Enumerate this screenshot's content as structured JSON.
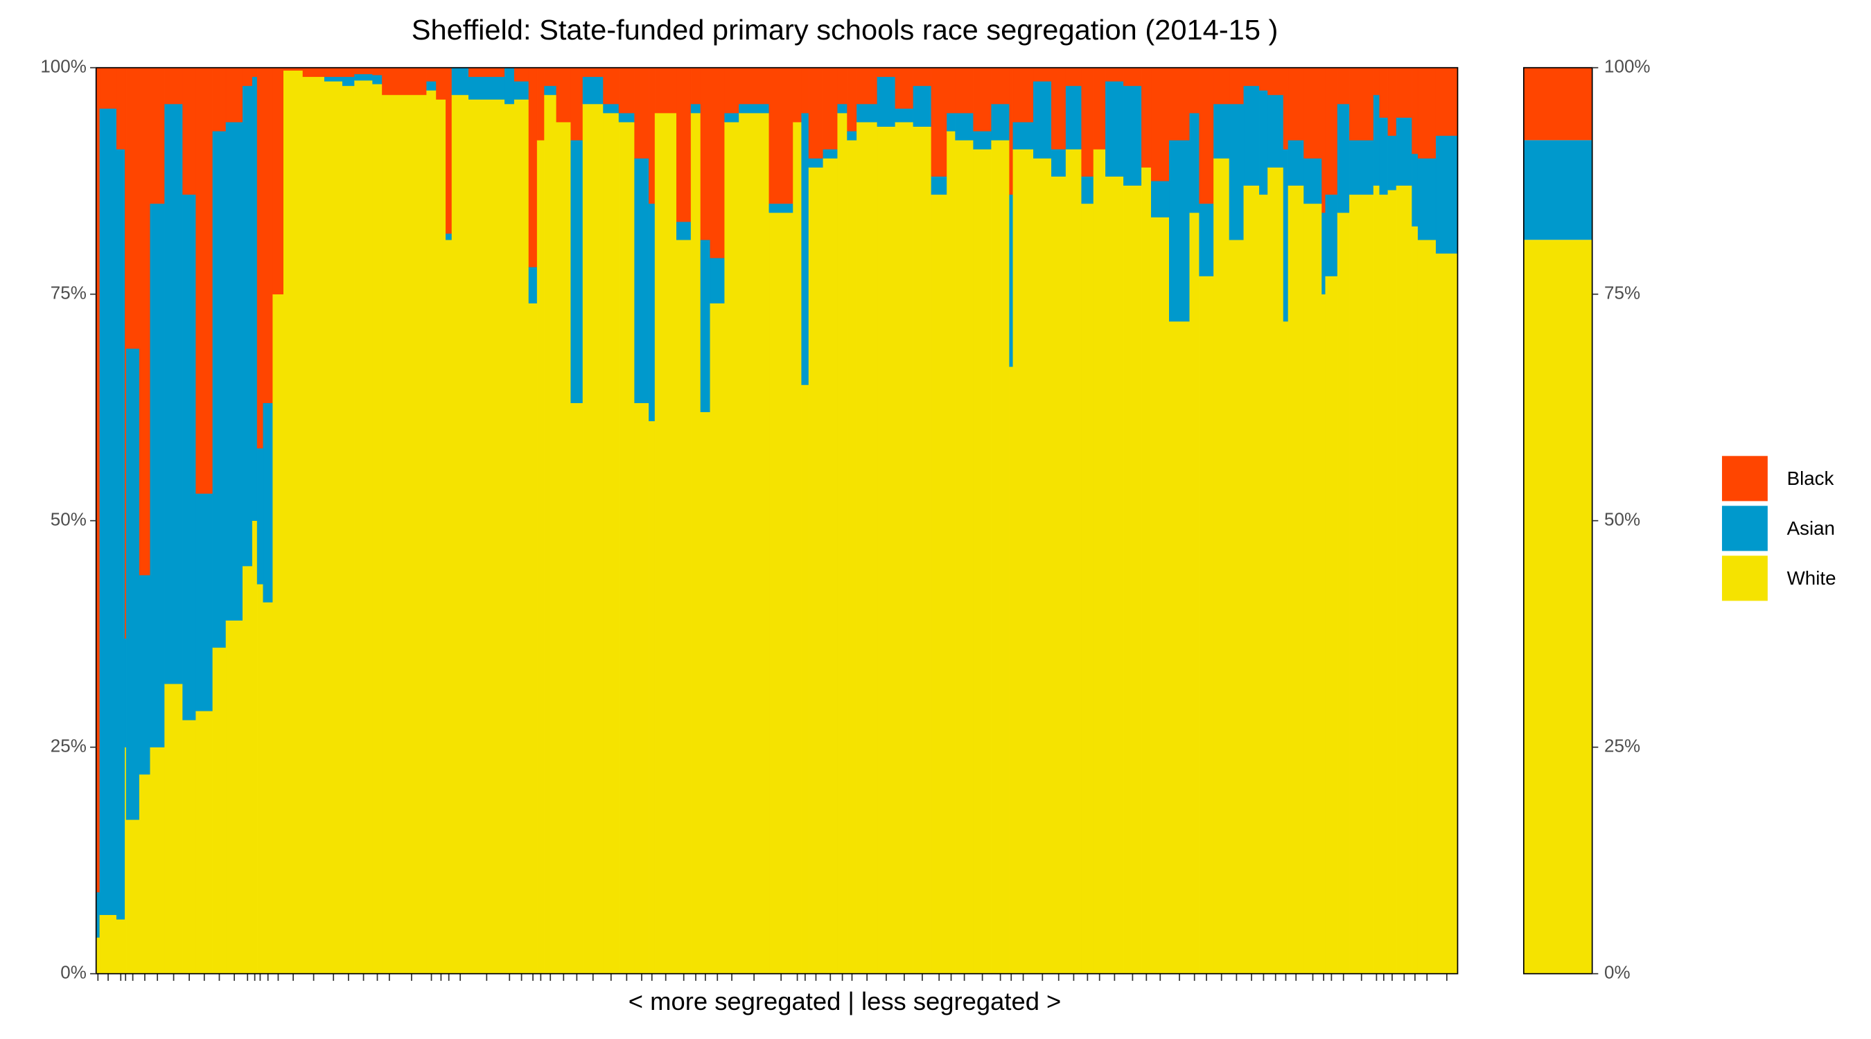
{
  "chart_data": {
    "type": "mekko",
    "title": "Sheffield: State-funded primary schools race segregation (2014-15 )",
    "x_label": "< more segregated | less segregated >",
    "ylim": [
      0,
      100
    ],
    "yticks": [
      {
        "value": 0,
        "label": "0%"
      },
      {
        "value": 25,
        "label": "25%"
      },
      {
        "value": 50,
        "label": "50%"
      },
      {
        "value": 75,
        "label": "75%"
      },
      {
        "value": 100,
        "label": "100%"
      }
    ],
    "legend_position": "right",
    "widths": [
      3,
      14,
      7,
      1,
      11,
      9,
      12,
      15,
      11,
      14,
      11,
      14,
      8,
      4,
      5,
      8,
      9,
      16,
      18,
      15,
      10,
      15,
      8,
      12,
      25,
      8,
      8,
      5,
      14,
      30,
      8,
      12,
      7,
      6,
      10,
      12,
      10,
      17,
      13,
      13,
      12,
      5,
      18,
      12,
      8,
      8,
      12,
      12,
      25,
      20,
      7,
      6,
      12,
      12,
      8,
      8,
      17,
      15,
      15,
      15,
      13,
      7,
      15,
      15,
      15,
      3,
      17,
      15,
      12,
      13,
      10,
      10,
      15,
      15,
      8,
      15,
      17,
      8,
      12,
      13,
      12,
      13,
      7,
      13,
      4,
      13,
      15,
      3,
      10,
      10,
      20,
      5,
      7,
      7,
      13,
      5,
      15,
      18
    ],
    "series": [
      {
        "name": "Black",
        "color": "#ff4500",
        "overall": 8,
        "values": [
          91,
          4.5,
          9,
          63,
          31,
          56,
          15,
          4,
          14,
          47,
          7,
          6,
          2,
          1,
          42,
          37,
          25,
          0.3,
          1,
          1,
          1,
          0.7,
          0.8,
          3,
          3,
          1.5,
          3.5,
          18.3,
          0,
          1,
          0,
          1.5,
          22,
          8,
          2,
          6,
          8,
          1,
          4,
          5,
          10,
          15,
          5,
          17,
          4,
          19,
          21,
          5,
          4,
          15,
          6,
          5,
          10,
          9,
          4,
          7,
          4,
          1,
          4.5,
          2,
          12,
          5,
          5,
          7,
          4,
          14,
          6,
          1.5,
          9,
          2,
          12,
          9,
          1.5,
          2,
          11,
          12.5,
          8,
          5,
          15,
          4,
          4,
          2,
          2.5,
          3,
          9,
          8,
          10,
          16,
          14,
          4,
          8,
          3,
          5.5,
          7.5,
          5.5,
          9.5,
          10,
          7.5
        ]
      },
      {
        "name": "Asian",
        "color": "#0099cc",
        "overall": 11,
        "values": [
          5,
          89,
          85,
          12,
          52,
          22,
          60,
          64,
          58,
          24,
          57,
          55,
          53,
          49,
          15,
          22,
          0,
          0,
          0,
          0.5,
          1,
          0.7,
          1,
          0,
          0,
          1,
          0,
          0.7,
          3,
          2.5,
          4,
          2,
          4,
          0,
          1,
          0,
          29,
          3,
          1,
          1,
          27,
          24,
          0,
          2,
          1,
          19,
          5,
          1,
          1,
          1,
          0,
          30,
          1,
          1,
          1,
          1,
          2,
          5.5,
          1.5,
          4.5,
          2,
          2,
          3,
          2,
          4,
          19,
          3,
          8.5,
          3,
          7,
          3,
          0,
          10.5,
          11,
          0,
          4,
          20,
          11,
          8,
          6,
          15,
          11,
          11.5,
          8,
          19,
          5,
          5,
          9,
          9,
          12,
          6,
          10,
          8.5,
          6,
          7.5,
          8,
          9,
          13
        ]
      },
      {
        "name": "White",
        "color": "#f5e300",
        "overall": 81,
        "values": [
          4,
          6.5,
          6,
          25,
          17,
          22,
          25,
          32,
          28,
          29,
          36,
          39,
          45,
          50,
          43,
          41,
          75,
          99.7,
          99,
          98.5,
          98,
          98.6,
          98.2,
          97,
          97,
          97.5,
          96.5,
          81,
          97,
          96.5,
          96,
          96.5,
          74,
          92,
          97,
          94,
          63,
          96,
          95,
          94,
          63,
          61,
          95,
          81,
          95,
          62,
          74,
          94,
          95,
          84,
          94,
          65,
          89,
          90,
          95,
          92,
          94,
          93.5,
          94,
          93.5,
          86,
          93,
          92,
          91,
          92,
          67,
          91,
          90,
          88,
          91,
          85,
          91,
          88,
          87,
          89,
          83.5,
          72,
          84,
          77,
          90,
          81,
          87,
          86,
          89,
          72,
          87,
          85,
          75,
          77,
          84,
          86,
          87,
          86,
          86.5,
          87,
          82.5,
          81,
          79.5
        ]
      }
    ]
  }
}
